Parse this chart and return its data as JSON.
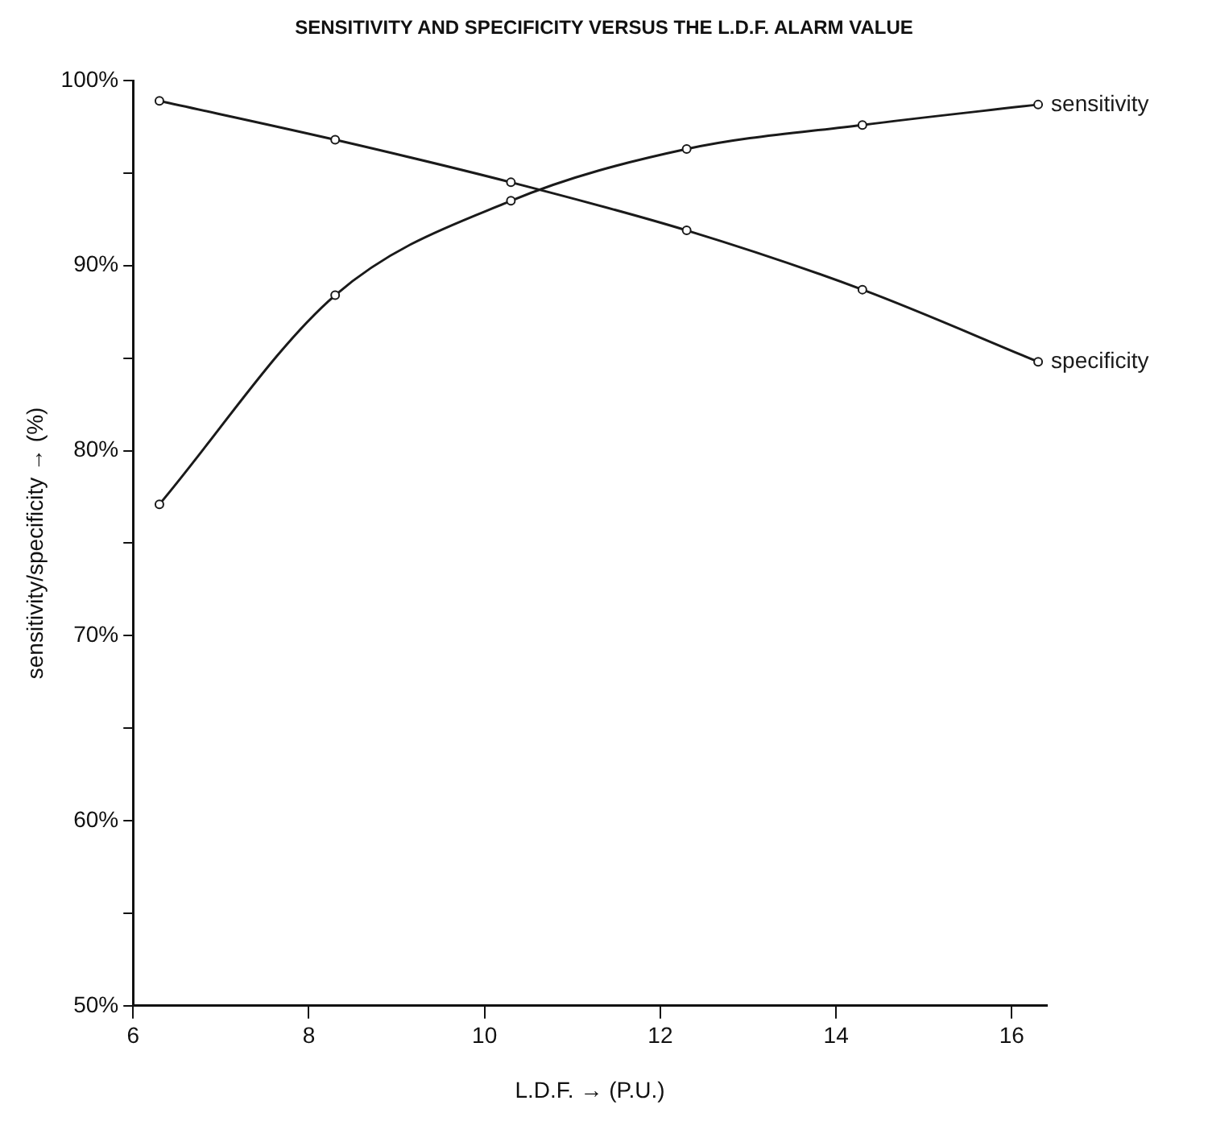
{
  "chart_data": {
    "type": "line",
    "title": "SENSITIVITY AND SPECIFICITY VERSUS THE L.D.F. ALARM VALUE",
    "xlabel": "L.D.F. → (P.U.)",
    "ylabel": "sensitivity/specificity → (%)",
    "x": [
      6.3,
      8.3,
      10.3,
      12.3,
      14.3,
      16.3
    ],
    "series": [
      {
        "name": "sensitivity",
        "color": "#1a1a1a",
        "values": [
          77.1,
          88.4,
          93.5,
          96.3,
          97.6,
          98.7
        ]
      },
      {
        "name": "specificity",
        "color": "#1a1a1a",
        "values": [
          98.9,
          96.8,
          94.5,
          91.9,
          88.7,
          84.8
        ]
      }
    ],
    "xlim": [
      6,
      16.4
    ],
    "xticks": [
      6,
      8,
      10,
      12,
      14,
      16
    ],
    "ylim": [
      50,
      100
    ],
    "yticks": [
      {
        "value": 50,
        "label": "50%"
      },
      {
        "value": 55,
        "label": null
      },
      {
        "value": 60,
        "label": "60%"
      },
      {
        "value": 65,
        "label": null
      },
      {
        "value": 70,
        "label": "70%"
      },
      {
        "value": 75,
        "label": null
      },
      {
        "value": 80,
        "label": "80%"
      },
      {
        "value": 85,
        "label": null
      },
      {
        "value": 90,
        "label": "90%"
      },
      {
        "value": 95,
        "label": null
      },
      {
        "value": 100,
        "label": "100%"
      }
    ],
    "grid": false,
    "legend": false,
    "marker": "circle",
    "line_style": "solid"
  }
}
